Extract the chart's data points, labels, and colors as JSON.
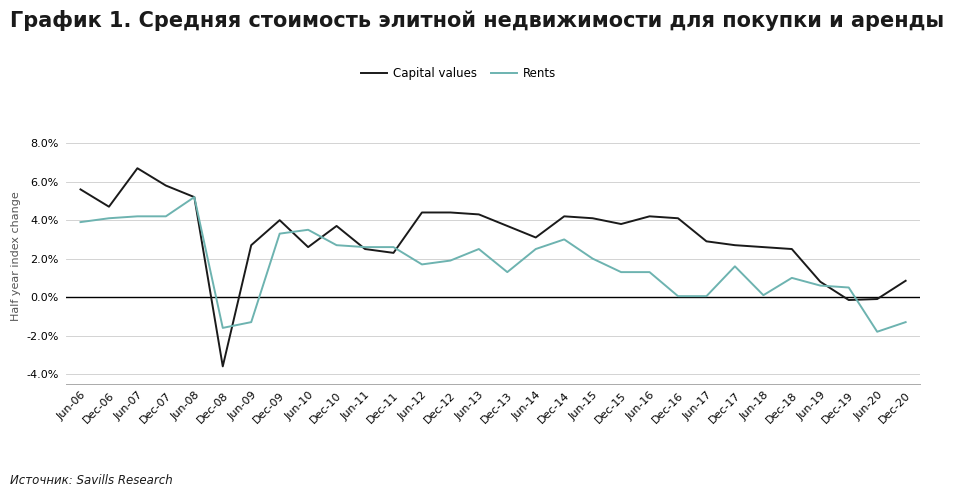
{
  "title": "График 1. Средняя стоимость элитной недвижимости для покупки и аренды",
  "source": "Источник: Savills Research",
  "ylabel": "Half year index change",
  "legend_labels": [
    "Capital values",
    "Rents"
  ],
  "x_labels": [
    "Jun-06",
    "Dec-06",
    "Jun-07",
    "Dec-07",
    "Jun-08",
    "Dec-08",
    "Jun-09",
    "Dec-09",
    "Jun-10",
    "Dec-10",
    "Jun-11",
    "Dec-11",
    "Jun-12",
    "Dec-12",
    "Jun-13",
    "Dec-13",
    "Jun-14",
    "Dec-14",
    "Jun-15",
    "Dec-15",
    "Jun-16",
    "Dec-16",
    "Jun-17",
    "Dec-17",
    "Jun-18",
    "Dec-18",
    "Jun-19",
    "Dec-19",
    "Jun-20",
    "Dec-20"
  ],
  "capital_values": [
    5.6,
    4.7,
    6.7,
    5.8,
    5.2,
    -3.6,
    2.7,
    4.0,
    2.6,
    3.7,
    2.5,
    2.3,
    4.4,
    4.4,
    4.3,
    3.7,
    3.1,
    4.2,
    4.1,
    3.8,
    4.2,
    4.1,
    2.9,
    2.7,
    2.6,
    2.5,
    0.8,
    -0.15,
    -0.1,
    0.85
  ],
  "rents": [
    3.9,
    4.1,
    4.2,
    4.2,
    5.2,
    -1.6,
    -1.3,
    3.3,
    3.5,
    2.7,
    2.6,
    2.6,
    1.7,
    1.9,
    2.5,
    1.3,
    2.5,
    3.0,
    2.0,
    1.3,
    1.3,
    0.05,
    0.05,
    1.6,
    0.1,
    1.0,
    0.6,
    0.5,
    -1.8,
    -1.3
  ],
  "capital_color": "#1a1a1a",
  "rents_color": "#6db3b0",
  "ylim": [
    -4.5,
    8.8
  ],
  "yticks": [
    -4.0,
    -2.0,
    0.0,
    2.0,
    4.0,
    6.0,
    8.0
  ],
  "background_color": "#ffffff",
  "grid_color": "#cccccc",
  "title_fontsize": 15,
  "axis_label_fontsize": 8,
  "tick_fontsize": 8
}
